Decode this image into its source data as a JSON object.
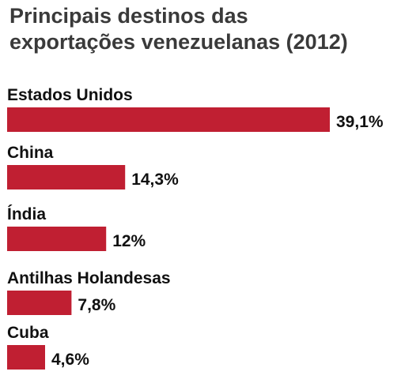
{
  "chart_data": {
    "type": "bar",
    "orientation": "horizontal",
    "title_lines": [
      "Principais destinos das",
      "exportações venezuelanas (2012)"
    ],
    "categories": [
      "Estados Unidos",
      "China",
      "Índia",
      "Antilhas Holandesas",
      "Cuba"
    ],
    "values": [
      39.1,
      14.3,
      12,
      7.8,
      4.6
    ],
    "value_labels": [
      "39,1%",
      "14,3%",
      "12%",
      "7,8%",
      "4,6%"
    ],
    "unit": "%",
    "bar_color": "#c01f32",
    "grid": false,
    "legend": "none"
  }
}
